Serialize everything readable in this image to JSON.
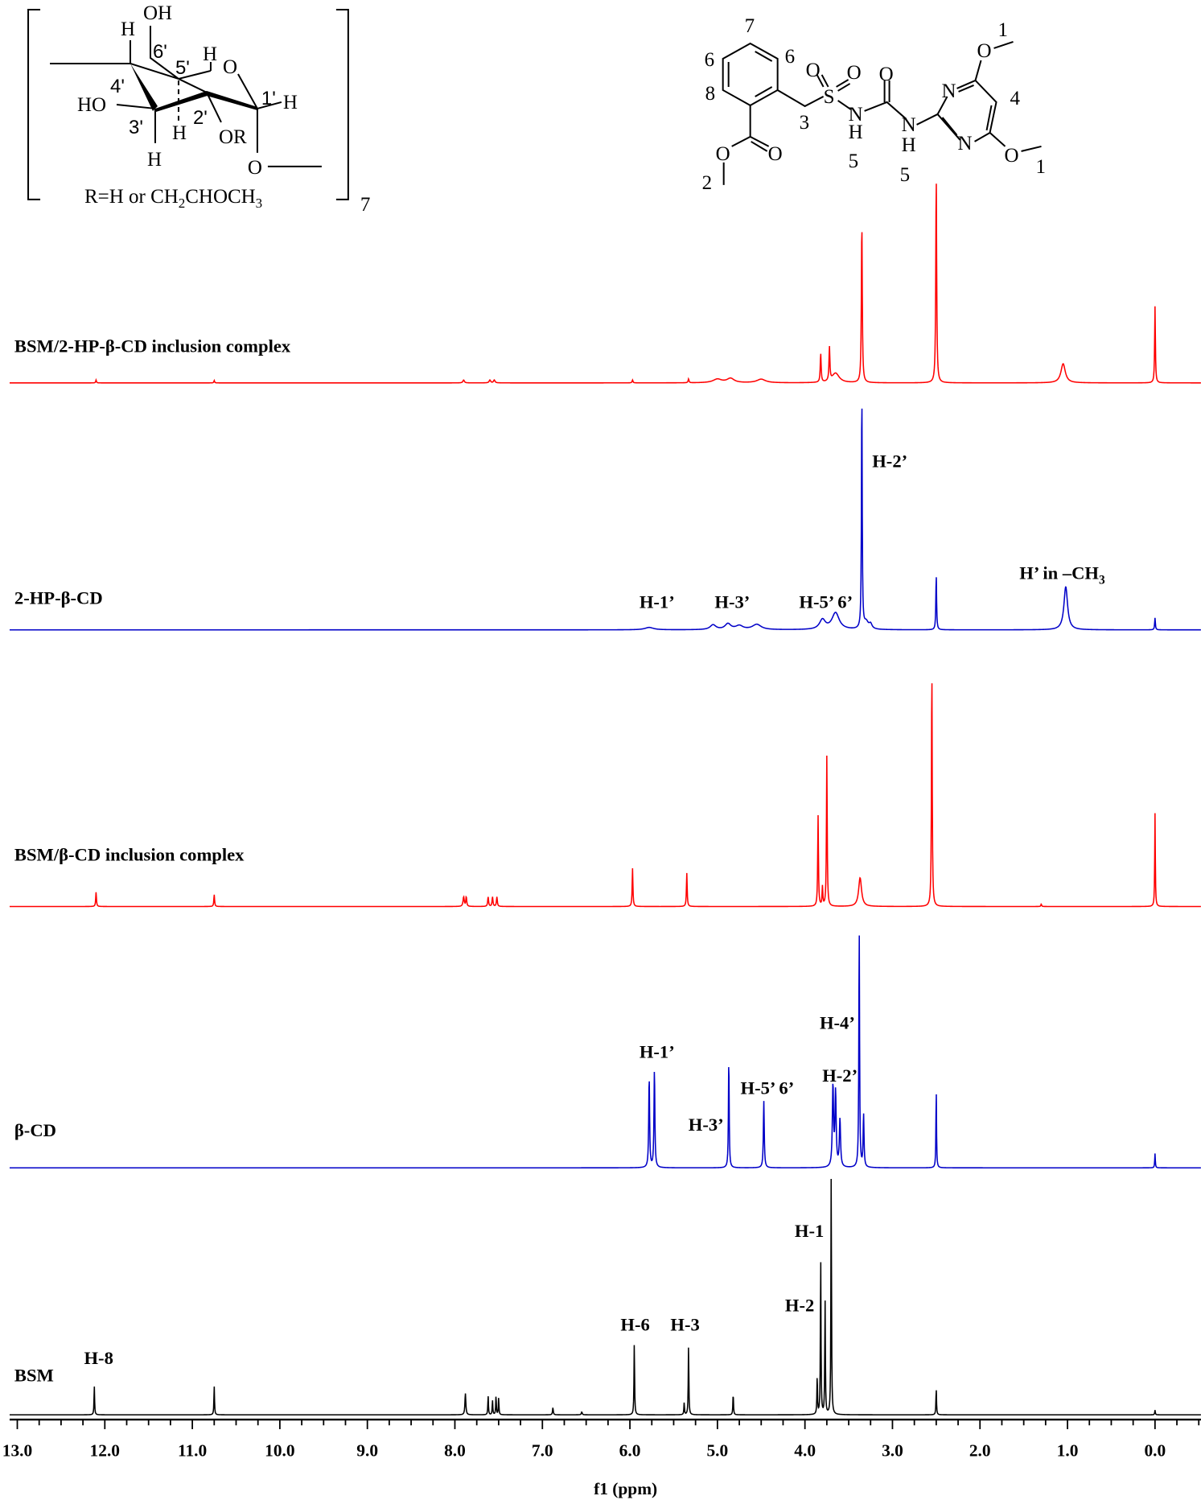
{
  "chart_data": {
    "type": "line",
    "xlabel": "f1 (ppm)",
    "xlim": [
      13.09,
      -0.52
    ],
    "x_ticks": [
      "13.0",
      "12.0",
      "11.0",
      "10.0",
      "9.0",
      "8.0",
      "7.0",
      "6.0",
      "5.0",
      "4.0",
      "3.0",
      "2.0",
      "1.0",
      "0.0"
    ],
    "grid": false,
    "intensity_units": "relative (% of tallest drawn peak)",
    "series": [
      {
        "name": "BSM/2-HP-β-CD inclusion complex",
        "color": "#ff0000",
        "peaks": [
          [
            3.35,
            67,
            0.006
          ],
          [
            2.5,
            86,
            0.006
          ],
          [
            0.0,
            32,
            0.005
          ],
          [
            1.05,
            8,
            0.03
          ],
          [
            3.82,
            12,
            0.006
          ],
          [
            3.72,
            14,
            0.006
          ],
          [
            3.65,
            4,
            0.05
          ],
          [
            12.1,
            1.2,
            0.005
          ],
          [
            10.75,
            1,
            0.005
          ],
          [
            7.9,
            1.2,
            0.01
          ],
          [
            7.6,
            1.2,
            0.01
          ],
          [
            7.55,
            1.2,
            0.01
          ],
          [
            5.97,
            1.2,
            0.006
          ],
          [
            5.33,
            1.6,
            0.006
          ],
          [
            5.0,
            1.5,
            0.06
          ],
          [
            4.85,
            1.8,
            0.05
          ],
          [
            4.5,
            1.5,
            0.06
          ]
        ],
        "annotations": []
      },
      {
        "name": "2-HP-β-CD",
        "color": "#0000c8",
        "peaks": [
          [
            3.35,
            100,
            0.005
          ],
          [
            2.5,
            23,
            0.005
          ],
          [
            1.02,
            18,
            0.025
          ],
          [
            0.0,
            5,
            0.005
          ],
          [
            3.65,
            7,
            0.05
          ],
          [
            3.8,
            4,
            0.04
          ],
          [
            3.3,
            3,
            0.03
          ],
          [
            3.25,
            2,
            0.02
          ],
          [
            5.05,
            2,
            0.04
          ],
          [
            4.88,
            2.4,
            0.04
          ],
          [
            4.55,
            2.2,
            0.06
          ],
          [
            4.75,
            1.6,
            0.05
          ],
          [
            5.78,
            1,
            0.06
          ]
        ],
        "annotations": [
          {
            "text": "H-2’",
            "ppm": 3.03,
            "y": 170
          },
          {
            "text": "H-1’",
            "ppm": 5.69,
            "y": 23
          },
          {
            "text": "H-3’",
            "ppm": 4.83,
            "y": 23
          },
          {
            "text": "H-5’ 6’",
            "ppm": 3.76,
            "y": 23
          },
          {
            "text": "H’ in –CH",
            "sub": "3",
            "ppm": 1.06,
            "y": 53
          }
        ]
      },
      {
        "name": "BSM/β-CD inclusion complex",
        "color": "#ff0000",
        "peaks": [
          [
            2.55,
            100,
            0.005
          ],
          [
            3.75,
            63,
            0.005
          ],
          [
            3.85,
            38,
            0.005
          ],
          [
            3.8,
            8,
            0.005
          ],
          [
            3.37,
            12,
            0.02
          ],
          [
            12.1,
            6,
            0.005
          ],
          [
            10.75,
            5,
            0.005
          ],
          [
            7.9,
            4,
            0.008
          ],
          [
            7.87,
            4,
            0.006
          ],
          [
            7.62,
            4,
            0.006
          ],
          [
            7.57,
            4,
            0.006
          ],
          [
            7.52,
            4,
            0.006
          ],
          [
            5.97,
            16,
            0.005
          ],
          [
            5.35,
            14,
            0.005
          ],
          [
            0.0,
            39,
            0.004
          ],
          [
            1.3,
            1,
            0.005
          ]
        ],
        "annotations": []
      },
      {
        "name": "β-CD",
        "color": "#0000c8",
        "peaks": [
          [
            3.38,
            100,
            0.005
          ],
          [
            5.72,
            41,
            0.006
          ],
          [
            5.78,
            38,
            0.006
          ],
          [
            4.87,
            46,
            0.005
          ],
          [
            4.47,
            28,
            0.006
          ],
          [
            3.68,
            34,
            0.008
          ],
          [
            3.65,
            31,
            0.008
          ],
          [
            3.6,
            20,
            0.008
          ],
          [
            3.33,
            22,
            0.006
          ],
          [
            2.5,
            33,
            0.004
          ],
          [
            0.0,
            6,
            0.004
          ]
        ],
        "annotations": [
          {
            "text": "H-1’",
            "ppm": 5.69,
            "y": 115
          },
          {
            "text": "H-3’",
            "ppm": 5.13,
            "y": 39
          },
          {
            "text": "H-5’ 6’",
            "ppm": 4.43,
            "y": 77
          },
          {
            "text": "H-2’",
            "ppm": 3.6,
            "y": 90
          },
          {
            "text": "H-4’",
            "ppm": 3.63,
            "y": 145
          }
        ]
      },
      {
        "name": "BSM",
        "color": "#000000",
        "peaks": [
          [
            3.7,
            100,
            0.004
          ],
          [
            3.82,
            66,
            0.004
          ],
          [
            3.77,
            48,
            0.004
          ],
          [
            3.86,
            16,
            0.004
          ],
          [
            5.95,
            30,
            0.004
          ],
          [
            5.33,
            29,
            0.004
          ],
          [
            5.38,
            5,
            0.004
          ],
          [
            4.82,
            9,
            0.004
          ],
          [
            12.12,
            12,
            0.004
          ],
          [
            10.75,
            12,
            0.004
          ],
          [
            7.88,
            9,
            0.006
          ],
          [
            7.62,
            8,
            0.004
          ],
          [
            7.57,
            6,
            0.004
          ],
          [
            7.53,
            8,
            0.004
          ],
          [
            7.5,
            7,
            0.004
          ],
          [
            6.88,
            3,
            0.005
          ],
          [
            6.55,
            1.2,
            0.006
          ],
          [
            2.5,
            11,
            0.004
          ],
          [
            0.0,
            2,
            0.004
          ]
        ],
        "annotations": [
          {
            "text": "H-8",
            "ppm": 12.07,
            "y": 53
          },
          {
            "text": "H-6",
            "ppm": 5.94,
            "y": 88
          },
          {
            "text": "H-3",
            "ppm": 5.37,
            "y": 88
          },
          {
            "text": "H-1",
            "ppm": 3.95,
            "y": 186
          },
          {
            "text": "H-2",
            "ppm": 4.06,
            "y": 108
          }
        ]
      }
    ]
  },
  "structures": {
    "cyclodextrin": {
      "OH": "OH",
      "H_top": "H",
      "c6": "6'",
      "c5": "5'",
      "H5": "H",
      "O_ring": "O",
      "c1": "1'",
      "H1": "H",
      "c4": "4'",
      "HO": "HO",
      "c3": "3'",
      "H2": "H",
      "c2": "2'",
      "OR": "OR",
      "H3": "H",
      "O_link": "O",
      "r_def": "R=H or CH",
      "r_sub": "2",
      "r_def2": "CHOCH",
      "r_sub2": "3",
      "repeat": "7"
    },
    "bsm": {
      "n7": "7",
      "n6a": "6",
      "n6b": "6",
      "n8": "8",
      "n3": "3",
      "n2": "2",
      "n5a": "5",
      "n5b": "5",
      "n4": "4",
      "n1a": "1",
      "n1b": "1",
      "S": "S",
      "O1": "O",
      "O2": "O",
      "O3": "O",
      "N1": "N",
      "H1": "H",
      "N2": "N",
      "H2": "H",
      "Np1": "N",
      "Np2": "N",
      "Om1": "O",
      "Om2": "O",
      "Oe": "O",
      "Oc": "O"
    }
  }
}
